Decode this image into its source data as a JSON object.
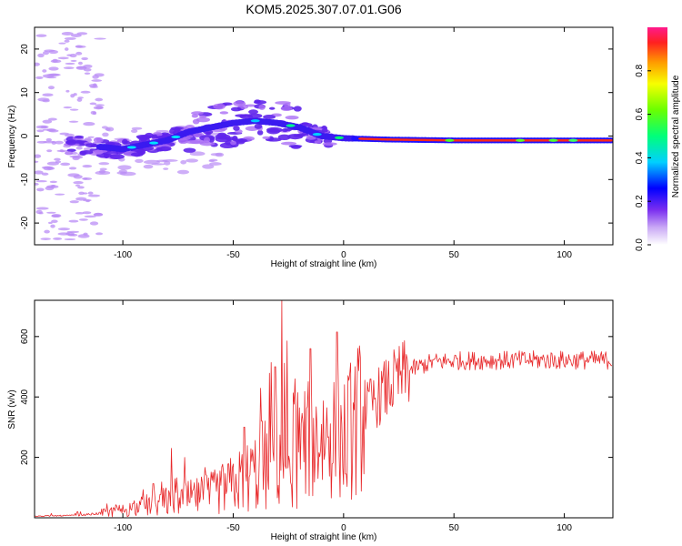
{
  "title": "KOM5.2025.307.07.01.G06",
  "chart_data": [
    {
      "type": "heatmap",
      "name": "spectrogram",
      "xlabel": "Height of straight line (km)",
      "ylabel": "Frequency (Hz)",
      "xlim": [
        -140,
        122
      ],
      "ylim": [
        -25,
        25
      ],
      "xticks": [
        -100,
        -50,
        0,
        50,
        100
      ],
      "yticks": [
        -20,
        -10,
        0,
        10,
        20
      ],
      "colorbar": {
        "label": "Normalized spectral amplitude",
        "range": [
          0,
          1
        ],
        "ticks": [
          0.0,
          0.2,
          0.4,
          0.6,
          0.8
        ]
      },
      "ridge": [
        {
          "x": -120,
          "f": -2
        },
        {
          "x": -100,
          "f": -3
        },
        {
          "x": -90,
          "f": -2
        },
        {
          "x": -80,
          "f": -1
        },
        {
          "x": -70,
          "f": 1
        },
        {
          "x": -60,
          "f": 2
        },
        {
          "x": -50,
          "f": 3
        },
        {
          "x": -40,
          "f": 3.5
        },
        {
          "x": -30,
          "f": 3
        },
        {
          "x": -20,
          "f": 2
        },
        {
          "x": -10,
          "f": 0
        },
        {
          "x": 0,
          "f": -0.5
        },
        {
          "x": 20,
          "f": -0.8
        },
        {
          "x": 50,
          "f": -1
        },
        {
          "x": 80,
          "f": -1
        },
        {
          "x": 100,
          "f": -1
        },
        {
          "x": 122,
          "f": -1
        }
      ]
    },
    {
      "type": "line",
      "name": "snr",
      "xlabel": "Height of straight line (km)",
      "ylabel": "SNR (v/v)",
      "xlim": [
        -140,
        122
      ],
      "ylim": [
        0,
        720
      ],
      "xticks": [
        -100,
        -50,
        0,
        50,
        100
      ],
      "yticks": [
        200,
        400,
        600
      ],
      "color": "#e8282a",
      "trend": [
        {
          "x": -140,
          "y": 5
        },
        {
          "x": -120,
          "y": 8
        },
        {
          "x": -110,
          "y": 15
        },
        {
          "x": -100,
          "y": 25
        },
        {
          "x": -90,
          "y": 40
        },
        {
          "x": -80,
          "y": 55
        },
        {
          "x": -70,
          "y": 65
        },
        {
          "x": -60,
          "y": 80
        },
        {
          "x": -50,
          "y": 110
        },
        {
          "x": -40,
          "y": 150
        },
        {
          "x": -30,
          "y": 200
        },
        {
          "x": -20,
          "y": 240
        },
        {
          "x": -10,
          "y": 270
        },
        {
          "x": -5,
          "y": 280
        },
        {
          "x": 0,
          "y": 260
        },
        {
          "x": 5,
          "y": 310
        },
        {
          "x": 10,
          "y": 360
        },
        {
          "x": 20,
          "y": 430
        },
        {
          "x": 30,
          "y": 490
        },
        {
          "x": 40,
          "y": 515
        },
        {
          "x": 50,
          "y": 520
        },
        {
          "x": 80,
          "y": 522
        },
        {
          "x": 100,
          "y": 522
        },
        {
          "x": 122,
          "y": 522
        }
      ],
      "spikes": [
        {
          "x": -78,
          "y": 230
        },
        {
          "x": -72,
          "y": 200
        },
        {
          "x": -45,
          "y": 300
        },
        {
          "x": -37,
          "y": 320
        },
        {
          "x": -31,
          "y": 500
        },
        {
          "x": -28,
          "y": 720
        },
        {
          "x": -22,
          "y": 460
        },
        {
          "x": -15,
          "y": 560
        },
        {
          "x": -3,
          "y": 615
        },
        {
          "x": 1,
          "y": 145
        }
      ]
    }
  ]
}
